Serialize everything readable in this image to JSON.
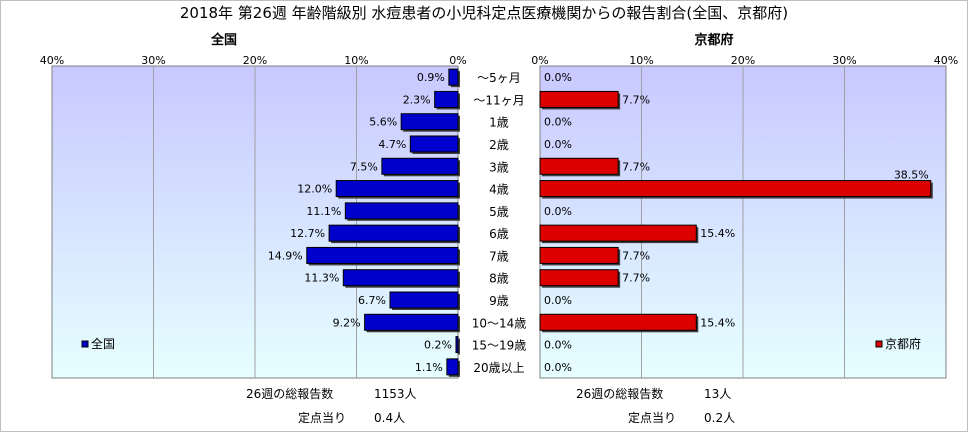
{
  "chart_data": {
    "type": "bar",
    "title": "2018年 第26週 年齢階級別 水痘患者の小児科定点医療機関からの報告割合(全国、京都府)",
    "categories": [
      "～5ヶ月",
      "～11ヶ月",
      "1歳",
      "2歳",
      "3歳",
      "4歳",
      "5歳",
      "6歳",
      "7歳",
      "8歳",
      "9歳",
      "10～14歳",
      "15～19歳",
      "20歳以上"
    ],
    "panels": [
      {
        "title": "全国",
        "legend": "全国",
        "legend_position": "bottom-left",
        "orientation": "reversed",
        "xlim": [
          0,
          40
        ],
        "x_ticks": [
          "40%",
          "30%",
          "20%",
          "10%",
          "0%"
        ],
        "values": [
          0.9,
          2.3,
          5.6,
          4.7,
          7.5,
          12.0,
          11.1,
          12.7,
          14.9,
          11.3,
          6.7,
          9.2,
          0.2,
          1.1
        ],
        "value_labels": [
          "0.9%",
          "2.3%",
          "5.6%",
          "4.7%",
          "7.5%",
          "12.0%",
          "11.1%",
          "12.7%",
          "14.9%",
          "11.3%",
          "6.7%",
          "9.2%",
          "0.2%",
          "1.1%"
        ],
        "color": "#0000cc",
        "footer": {
          "total_label": "26週の総報告数",
          "total_value": "1153人",
          "per_label": "定点当り",
          "per_value": "0.4人"
        }
      },
      {
        "title": "京都府",
        "legend": "京都府",
        "legend_position": "bottom-right",
        "orientation": "normal",
        "xlim": [
          0,
          40
        ],
        "x_ticks": [
          "0%",
          "10%",
          "20%",
          "30%",
          "40%"
        ],
        "values": [
          0.0,
          7.7,
          0.0,
          0.0,
          7.7,
          38.5,
          0.0,
          15.4,
          7.7,
          7.7,
          0.0,
          15.4,
          0.0,
          0.0
        ],
        "value_labels": [
          "0.0%",
          "7.7%",
          "0.0%",
          "0.0%",
          "7.7%",
          "38.5%",
          "0.0%",
          "15.4%",
          "7.7%",
          "7.7%",
          "0.0%",
          "15.4%",
          "0.0%",
          "0.0%"
        ],
        "color": "#dd0000",
        "footer": {
          "total_label": "26週の総報告数",
          "total_value": "13人",
          "per_label": "定点当り",
          "per_value": "0.2人"
        }
      }
    ],
    "grid": true,
    "background_gradient": [
      "#c8c8ff",
      "#e6ffff"
    ]
  }
}
